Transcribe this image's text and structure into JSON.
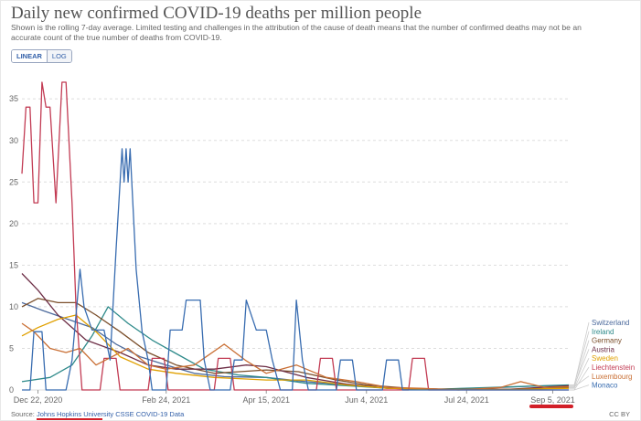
{
  "title": "Daily new confirmed COVID-19 deaths per million people",
  "subtitle": "Shown is the rolling 7-day average. Limited testing and challenges in the attribution of the cause of death means that the number of confirmed deaths may not be an accurate count of the true number of deaths from COVID-19.",
  "toggle": {
    "linear": "LINEAR",
    "log": "LOG"
  },
  "footer": {
    "source_prefix": "Source: ",
    "source_link": "Johns Hopkins University CSSE COVID-19 Data",
    "license": "CC BY"
  },
  "chart_data": {
    "type": "line",
    "title": "Daily new confirmed COVID-19 deaths per million people",
    "ylim": [
      0,
      37
    ],
    "yticks": [
      0,
      5,
      10,
      15,
      20,
      25,
      30,
      35
    ],
    "xlim": [
      "2020-12-14",
      "2021-09-13"
    ],
    "xticks": [
      "2020-12-22",
      "2021-02-24",
      "2021-04-15",
      "2021-06-04",
      "2021-07-24",
      "2021-09-05"
    ],
    "xtick_labels": [
      "Dec 22, 2020",
      "Feb 24, 2021",
      "Apr 15, 2021",
      "Jun 4, 2021",
      "Jul 24, 2021",
      "Sep 5, 2021"
    ],
    "grid": true,
    "legend": "right",
    "series": [
      {
        "name": "Switzerland",
        "color": "#4c6a9c",
        "points": [
          [
            "2020-12-14",
            10.5
          ],
          [
            "2020-12-25",
            9.5
          ],
          [
            "2021-01-06",
            8.5
          ],
          [
            "2021-01-18",
            7.5
          ],
          [
            "2021-01-30",
            5.5
          ],
          [
            "2021-02-11",
            4
          ],
          [
            "2021-02-24",
            3
          ],
          [
            "2021-03-10",
            2
          ],
          [
            "2021-03-25",
            1.6
          ],
          [
            "2021-04-15",
            1.5
          ],
          [
            "2021-05-05",
            1
          ],
          [
            "2021-05-25",
            0.6
          ],
          [
            "2021-06-15",
            0.2
          ],
          [
            "2021-07-10",
            0.1
          ],
          [
            "2021-08-05",
            0.25
          ],
          [
            "2021-08-25",
            0.45
          ],
          [
            "2021-09-13",
            0.55
          ]
        ]
      },
      {
        "name": "Ireland",
        "color": "#2e8a8a",
        "points": [
          [
            "2020-12-14",
            1
          ],
          [
            "2020-12-28",
            1.5
          ],
          [
            "2021-01-08",
            3
          ],
          [
            "2021-01-18",
            6.5
          ],
          [
            "2021-01-26",
            10
          ],
          [
            "2021-02-05",
            8
          ],
          [
            "2021-02-17",
            6
          ],
          [
            "2021-02-28",
            4.5
          ],
          [
            "2021-03-15",
            2.5
          ],
          [
            "2021-04-01",
            1.8
          ],
          [
            "2021-04-15",
            1.5
          ],
          [
            "2021-05-05",
            0.8
          ],
          [
            "2021-05-25",
            0.5
          ],
          [
            "2021-06-15",
            0.2
          ],
          [
            "2021-07-10",
            0.1
          ],
          [
            "2021-08-05",
            0.3
          ],
          [
            "2021-09-05",
            0.55
          ],
          [
            "2021-09-13",
            0.6
          ]
        ]
      },
      {
        "name": "Germany",
        "color": "#7a4e2a",
        "points": [
          [
            "2020-12-14",
            10
          ],
          [
            "2020-12-22",
            11
          ],
          [
            "2021-01-01",
            10.5
          ],
          [
            "2021-01-10",
            10.5
          ],
          [
            "2021-01-20",
            9
          ],
          [
            "2021-02-01",
            7
          ],
          [
            "2021-02-15",
            4.5
          ],
          [
            "2021-03-01",
            3
          ],
          [
            "2021-03-20",
            2
          ],
          [
            "2021-04-15",
            2.4
          ],
          [
            "2021-05-01",
            2.2
          ],
          [
            "2021-05-20",
            1.2
          ],
          [
            "2021-06-04",
            0.6
          ],
          [
            "2021-06-25",
            0.2
          ],
          [
            "2021-07-20",
            0.05
          ],
          [
            "2021-08-20",
            0.1
          ],
          [
            "2021-09-13",
            0.3
          ]
        ]
      },
      {
        "name": "Austria",
        "color": "#6d2e46",
        "points": [
          [
            "2020-12-14",
            14
          ],
          [
            "2020-12-22",
            12
          ],
          [
            "2021-01-01",
            9
          ],
          [
            "2021-01-15",
            6
          ],
          [
            "2021-02-01",
            4.5
          ],
          [
            "2021-02-15",
            3
          ],
          [
            "2021-03-01",
            2.5
          ],
          [
            "2021-03-20",
            2.5
          ],
          [
            "2021-04-05",
            3
          ],
          [
            "2021-04-15",
            2.8
          ],
          [
            "2021-05-05",
            1.5
          ],
          [
            "2021-05-25",
            0.7
          ],
          [
            "2021-06-15",
            0.2
          ],
          [
            "2021-07-15",
            0.05
          ],
          [
            "2021-08-15",
            0.1
          ],
          [
            "2021-09-13",
            0.5
          ]
        ]
      },
      {
        "name": "Sweden",
        "color": "#e0a000",
        "points": [
          [
            "2020-12-14",
            6.5
          ],
          [
            "2020-12-22",
            7.5
          ],
          [
            "2021-01-01",
            8.5
          ],
          [
            "2021-01-10",
            9
          ],
          [
            "2021-01-20",
            7
          ],
          [
            "2021-02-01",
            4
          ],
          [
            "2021-02-15",
            2.5
          ],
          [
            "2021-03-01",
            2
          ],
          [
            "2021-03-20",
            1.5
          ],
          [
            "2021-04-15",
            1.2
          ],
          [
            "2021-05-05",
            1.2
          ],
          [
            "2021-05-25",
            0.6
          ],
          [
            "2021-06-15",
            0.2
          ],
          [
            "2021-07-15",
            0.05
          ],
          [
            "2021-08-15",
            0.05
          ],
          [
            "2021-09-13",
            0.2
          ]
        ]
      },
      {
        "name": "Liechtenstein",
        "color": "#c23b53",
        "points": [
          [
            "2020-12-14",
            26
          ],
          [
            "2020-12-16",
            34
          ],
          [
            "2020-12-18",
            34
          ],
          [
            "2020-12-20",
            22.5
          ],
          [
            "2020-12-22",
            22.5
          ],
          [
            "2020-12-24",
            37
          ],
          [
            "2020-12-26",
            34
          ],
          [
            "2020-12-28",
            34
          ],
          [
            "2020-12-31",
            22.5
          ],
          [
            "2021-01-03",
            37
          ],
          [
            "2021-01-05",
            37
          ],
          [
            "2021-01-08",
            22.5
          ],
          [
            "2021-01-10",
            10
          ],
          [
            "2021-01-13",
            0
          ],
          [
            "2021-01-22",
            0
          ],
          [
            "2021-01-24",
            3.8
          ],
          [
            "2021-01-30",
            3.8
          ],
          [
            "2021-02-01",
            0
          ],
          [
            "2021-02-15",
            0
          ],
          [
            "2021-02-17",
            3.8
          ],
          [
            "2021-02-23",
            3.8
          ],
          [
            "2021-02-25",
            0
          ],
          [
            "2021-03-20",
            0
          ],
          [
            "2021-03-22",
            3.8
          ],
          [
            "2021-03-28",
            3.8
          ],
          [
            "2021-03-30",
            0
          ],
          [
            "2021-05-10",
            0
          ],
          [
            "2021-05-12",
            3.8
          ],
          [
            "2021-05-18",
            3.8
          ],
          [
            "2021-05-20",
            0
          ],
          [
            "2021-06-25",
            0
          ],
          [
            "2021-06-27",
            3.8
          ],
          [
            "2021-07-03",
            3.8
          ],
          [
            "2021-07-05",
            0
          ],
          [
            "2021-09-13",
            0
          ]
        ]
      },
      {
        "name": "Luxembourg",
        "color": "#c96f34",
        "points": [
          [
            "2020-12-14",
            8
          ],
          [
            "2020-12-20",
            7
          ],
          [
            "2020-12-28",
            5
          ],
          [
            "2021-01-05",
            4.5
          ],
          [
            "2021-01-12",
            5
          ],
          [
            "2021-01-20",
            3
          ],
          [
            "2021-01-28",
            4
          ],
          [
            "2021-02-05",
            5
          ],
          [
            "2021-02-15",
            3
          ],
          [
            "2021-02-24",
            2.5
          ],
          [
            "2021-03-10",
            3
          ],
          [
            "2021-03-25",
            5.5
          ],
          [
            "2021-04-05",
            3.5
          ],
          [
            "2021-04-15",
            2
          ],
          [
            "2021-04-30",
            3
          ],
          [
            "2021-05-15",
            1.5
          ],
          [
            "2021-05-30",
            1
          ],
          [
            "2021-06-15",
            0.3
          ],
          [
            "2021-07-01",
            0.2
          ],
          [
            "2021-07-20",
            0
          ],
          [
            "2021-08-10",
            0.3
          ],
          [
            "2021-08-20",
            1
          ],
          [
            "2021-09-01",
            0.3
          ],
          [
            "2021-09-13",
            0.4
          ]
        ]
      },
      {
        "name": "Monaco",
        "color": "#386cb0",
        "points": [
          [
            "2020-12-14",
            0
          ],
          [
            "2020-12-18",
            0
          ],
          [
            "2020-12-20",
            7
          ],
          [
            "2020-12-24",
            7
          ],
          [
            "2020-12-26",
            0
          ],
          [
            "2021-01-05",
            0
          ],
          [
            "2021-01-08",
            3.6
          ],
          [
            "2021-01-12",
            14.5
          ],
          [
            "2021-01-14",
            10
          ],
          [
            "2021-01-18",
            7.2
          ],
          [
            "2021-01-24",
            7.2
          ],
          [
            "2021-01-27",
            3.6
          ],
          [
            "2021-01-30",
            17
          ],
          [
            "2021-02-02",
            29
          ],
          [
            "2021-02-03",
            25
          ],
          [
            "2021-02-04",
            29
          ],
          [
            "2021-02-05",
            25
          ],
          [
            "2021-02-06",
            29
          ],
          [
            "2021-02-09",
            14.5
          ],
          [
            "2021-02-12",
            7
          ],
          [
            "2021-02-15",
            3.6
          ],
          [
            "2021-02-17",
            0
          ],
          [
            "2021-02-24",
            0
          ],
          [
            "2021-02-26",
            7.2
          ],
          [
            "2021-03-04",
            7.2
          ],
          [
            "2021-03-06",
            10.8
          ],
          [
            "2021-03-13",
            10.8
          ],
          [
            "2021-03-15",
            3.6
          ],
          [
            "2021-03-18",
            0
          ],
          [
            "2021-03-28",
            0
          ],
          [
            "2021-03-30",
            3.6
          ],
          [
            "2021-04-03",
            3.6
          ],
          [
            "2021-04-05",
            10.8
          ],
          [
            "2021-04-10",
            7.2
          ],
          [
            "2021-04-15",
            7.2
          ],
          [
            "2021-04-18",
            3.6
          ],
          [
            "2021-04-22",
            0
          ],
          [
            "2021-04-28",
            0
          ],
          [
            "2021-04-30",
            10.8
          ],
          [
            "2021-05-03",
            3.6
          ],
          [
            "2021-05-06",
            0
          ],
          [
            "2021-05-20",
            0
          ],
          [
            "2021-05-22",
            3.6
          ],
          [
            "2021-05-28",
            3.6
          ],
          [
            "2021-05-30",
            0
          ],
          [
            "2021-06-12",
            0
          ],
          [
            "2021-06-14",
            3.6
          ],
          [
            "2021-06-20",
            3.6
          ],
          [
            "2021-06-22",
            0
          ],
          [
            "2021-09-13",
            0
          ]
        ]
      }
    ]
  }
}
